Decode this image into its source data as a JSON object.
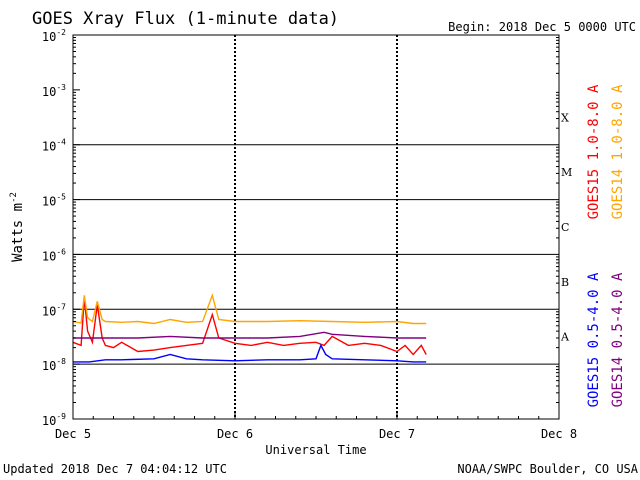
{
  "chart_data": {
    "type": "line",
    "title": "GOES Xray Flux (1-minute data)",
    "begin_label": "Begin:  2018 Dec 5 0000 UTC",
    "ylabel": "Watts m",
    "ylabel_exp": "-2",
    "xlabel": "Universal Time",
    "footer_left": "Updated 2018 Dec  7 04:04:12 UTC",
    "footer_right": "NOAA/SWPC Boulder, CO USA",
    "y_scale": "log",
    "ylim": [
      1e-09,
      0.01
    ],
    "y_ticks": [
      {
        "value": 0.01,
        "base": "10",
        "exp": "-2"
      },
      {
        "value": 0.001,
        "base": "10",
        "exp": "-3"
      },
      {
        "value": 0.0001,
        "base": "10",
        "exp": "-4"
      },
      {
        "value": 1e-05,
        "base": "10",
        "exp": "-5"
      },
      {
        "value": 1e-06,
        "base": "10",
        "exp": "-6"
      },
      {
        "value": 1e-07,
        "base": "10",
        "exp": "-7"
      },
      {
        "value": 1e-08,
        "base": "10",
        "exp": "-8"
      },
      {
        "value": 1e-09,
        "base": "10",
        "exp": "-9"
      }
    ],
    "xlim_days": [
      0,
      3
    ],
    "x_ticks": [
      {
        "value": 0,
        "label": "Dec 5"
      },
      {
        "value": 1,
        "label": "Dec 6"
      },
      {
        "value": 2,
        "label": "Dec 7"
      },
      {
        "value": 3,
        "label": "Dec 8"
      }
    ],
    "flare_classes": [
      {
        "label": "X",
        "value": 0.0001
      },
      {
        "label": "M",
        "value": 1e-05
      },
      {
        "label": "C",
        "value": 1e-06
      },
      {
        "label": "B",
        "value": 1e-07
      },
      {
        "label": "A",
        "value": 1e-08
      }
    ],
    "series": [
      {
        "name": "GOES15 1.0-8.0 A",
        "color": "#ff0000",
        "x": [
          0,
          0.05,
          0.07,
          0.09,
          0.12,
          0.15,
          0.18,
          0.2,
          0.25,
          0.3,
          0.4,
          0.5,
          0.6,
          0.7,
          0.8,
          0.86,
          0.9,
          1.0,
          1.1,
          1.2,
          1.3,
          1.4,
          1.5,
          1.55,
          1.6,
          1.7,
          1.8,
          1.9,
          2.0,
          2.05,
          2.1,
          2.15,
          2.18
        ],
        "values": [
          2.5e-08,
          2.2e-08,
          1.6e-07,
          4e-08,
          2.5e-08,
          1.2e-07,
          3e-08,
          2.2e-08,
          2e-08,
          2.5e-08,
          1.7e-08,
          1.8e-08,
          2e-08,
          2.2e-08,
          2.4e-08,
          8e-08,
          3e-08,
          2.4e-08,
          2.2e-08,
          2.5e-08,
          2.2e-08,
          2.4e-08,
          2.5e-08,
          2.2e-08,
          3.2e-08,
          2.2e-08,
          2.4e-08,
          2.2e-08,
          1.7e-08,
          2.2e-08,
          1.5e-08,
          2.2e-08,
          1.5e-08
        ]
      },
      {
        "name": "GOES14 1.0-8.0 A",
        "color": "#ffa500",
        "x": [
          0,
          0.05,
          0.07,
          0.09,
          0.12,
          0.15,
          0.18,
          0.2,
          0.3,
          0.4,
          0.5,
          0.6,
          0.7,
          0.8,
          0.86,
          0.9,
          1.0,
          1.2,
          1.4,
          1.6,
          1.8,
          2.0,
          2.1,
          2.18
        ],
        "values": [
          6e-08,
          5.6e-08,
          1.8e-07,
          7e-08,
          6e-08,
          1.4e-07,
          6.5e-08,
          6e-08,
          5.8e-08,
          6e-08,
          5.5e-08,
          6.5e-08,
          5.8e-08,
          6e-08,
          1.8e-07,
          6.5e-08,
          6e-08,
          6e-08,
          6.2e-08,
          6e-08,
          5.8e-08,
          6e-08,
          5.5e-08,
          5.5e-08
        ]
      },
      {
        "name": "GOES15 0.5-4.0 A",
        "color": "#0000ff",
        "x": [
          0,
          0.1,
          0.2,
          0.3,
          0.5,
          0.6,
          0.7,
          0.8,
          1.0,
          1.2,
          1.4,
          1.5,
          1.53,
          1.56,
          1.6,
          1.8,
          2.0,
          2.1,
          2.18
        ],
        "values": [
          1.1e-08,
          1.1e-08,
          1.2e-08,
          1.2e-08,
          1.25e-08,
          1.5e-08,
          1.25e-08,
          1.2e-08,
          1.15e-08,
          1.2e-08,
          1.2e-08,
          1.25e-08,
          2.2e-08,
          1.5e-08,
          1.25e-08,
          1.2e-08,
          1.15e-08,
          1.1e-08,
          1.1e-08
        ]
      },
      {
        "name": "GOES14 0.5-4.0 A",
        "color": "#800080",
        "x": [
          0,
          0.2,
          0.4,
          0.6,
          0.8,
          1.0,
          1.2,
          1.4,
          1.55,
          1.6,
          1.8,
          2.0,
          2.18
        ],
        "values": [
          3e-08,
          3e-08,
          3e-08,
          3.2e-08,
          3e-08,
          3e-08,
          3e-08,
          3.2e-08,
          3.8e-08,
          3.5e-08,
          3.2e-08,
          3e-08,
          3e-08
        ]
      }
    ]
  }
}
